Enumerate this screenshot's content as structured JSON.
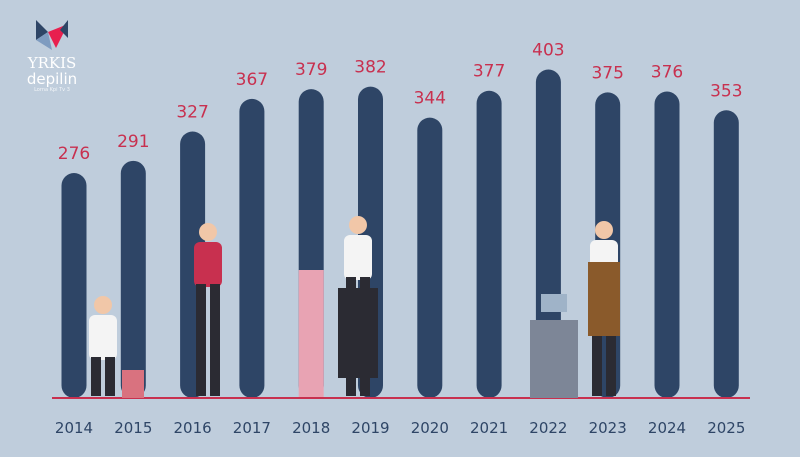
{
  "logo": {
    "line1": "YRKIS",
    "line2": "depilin",
    "tagline": "Lorna Kpi Tv 3"
  },
  "colors": {
    "bar": "#2e4566",
    "label": "#c8304f",
    "axis": "#c8304f",
    "year": "#2e4566",
    "highlight": "#e8a3b3"
  },
  "chart_data": {
    "type": "bar",
    "title": "",
    "xlabel": "",
    "ylabel": "",
    "categories": [
      "2014",
      "2015",
      "2016",
      "2017",
      "2018",
      "2019",
      "2020",
      "2021",
      "2022",
      "2023",
      "2024",
      "2025"
    ],
    "values": [
      276,
      291,
      327,
      367,
      379,
      382,
      344,
      377,
      403,
      375,
      376,
      353
    ],
    "ylim": [
      0,
      403
    ],
    "grid": false,
    "legend": "none",
    "data_labels": true
  }
}
